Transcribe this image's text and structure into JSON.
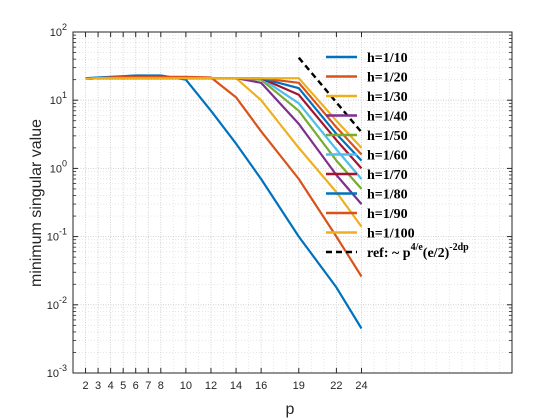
{
  "chart_data": {
    "type": "line",
    "xlabel": "p",
    "ylabel": "minimum singular value",
    "xscale": "linear",
    "yscale": "log",
    "xlim": [
      1,
      36
    ],
    "ylim": [
      0.001,
      100
    ],
    "xticks": [
      2,
      3,
      4,
      5,
      6,
      7,
      8,
      10,
      12,
      14,
      16,
      19,
      22,
      24
    ],
    "xtick_labels": [
      "2",
      "3",
      "4",
      "5",
      "6",
      "7",
      "8",
      "10",
      "12",
      "14",
      "16",
      "19",
      "22",
      "24"
    ],
    "ytick_labels": [
      {
        "exp": -3,
        "base": "10",
        "power": "-3"
      },
      {
        "exp": -2,
        "base": "10",
        "power": "-2"
      },
      {
        "exp": -1,
        "base": "10",
        "power": "-1"
      },
      {
        "exp": 0,
        "base": "10",
        "power": "0"
      },
      {
        "exp": 1,
        "base": "10",
        "power": "1"
      },
      {
        "exp": 2,
        "base": "10",
        "power": "2"
      }
    ],
    "grid": true,
    "minor_grid": true,
    "legend_position": "right",
    "x": [
      2,
      3,
      4,
      5,
      6,
      7,
      8,
      10,
      12,
      14,
      16,
      19,
      22,
      24
    ],
    "series": [
      {
        "name": "h=1/10",
        "color": "#0072BD",
        "style": "solid",
        "values": [
          21,
          21.5,
          22,
          22.5,
          23,
          23,
          23,
          20,
          7,
          2.3,
          0.7,
          0.1,
          0.018,
          0.0045
        ]
      },
      {
        "name": "h=1/20",
        "color": "#D95319",
        "style": "solid",
        "values": [
          20.5,
          21,
          21.5,
          22,
          22,
          22,
          22,
          22,
          21.5,
          11,
          3.5,
          0.7,
          0.1,
          0.026
        ]
      },
      {
        "name": "h=1/30",
        "color": "#EDB120",
        "style": "solid",
        "values": [
          20.5,
          21,
          21,
          21,
          21,
          21,
          21,
          21,
          21,
          21,
          10,
          2,
          0.45,
          0.14
        ]
      },
      {
        "name": "h=1/40",
        "color": "#7E2F8E",
        "style": "solid",
        "values": [
          20.5,
          21,
          21,
          21,
          21,
          21,
          21,
          21,
          21,
          21,
          18,
          4.5,
          0.8,
          0.3
        ]
      },
      {
        "name": "h=1/50",
        "color": "#77AC30",
        "style": "solid",
        "values": [
          20.5,
          21,
          21,
          21,
          21,
          21,
          21,
          21,
          21,
          21,
          20,
          7,
          1.3,
          0.5
        ]
      },
      {
        "name": "h=1/60",
        "color": "#4DBEEE",
        "style": "solid",
        "values": [
          20.5,
          21,
          21,
          21,
          21,
          21,
          21,
          21,
          21,
          21,
          21,
          9,
          1.9,
          0.7
        ]
      },
      {
        "name": "h=1/70",
        "color": "#A2142F",
        "style": "solid",
        "values": [
          20.5,
          21,
          21,
          21,
          21,
          21,
          21,
          21,
          21,
          21,
          21,
          12,
          2.6,
          1.0
        ]
      },
      {
        "name": "h=1/80",
        "color": "#0072BD",
        "style": "solid",
        "values": [
          20.5,
          21,
          21,
          21,
          21,
          21,
          21,
          21,
          21,
          21,
          21,
          15,
          3.2,
          1.3
        ]
      },
      {
        "name": "h=1/90",
        "color": "#D95319",
        "style": "solid",
        "values": [
          20.5,
          21,
          21,
          21,
          21,
          21,
          21,
          21,
          21,
          21,
          21,
          18,
          4.0,
          1.6
        ]
      },
      {
        "name": "h=1/100",
        "color": "#EDB120",
        "style": "solid",
        "values": [
          20.5,
          21,
          21,
          21,
          21,
          21,
          21,
          21,
          21,
          21,
          21,
          21,
          5.0,
          2.0
        ]
      }
    ],
    "reference": {
      "name_main": "ref: ~ p",
      "name_sup1": "4/e",
      "name_mid": "(e/2)",
      "name_sup2": "-2dp",
      "color": "#000000",
      "style": "dashed",
      "x": [
        19,
        24
      ],
      "values": [
        42,
        3.4
      ]
    }
  }
}
